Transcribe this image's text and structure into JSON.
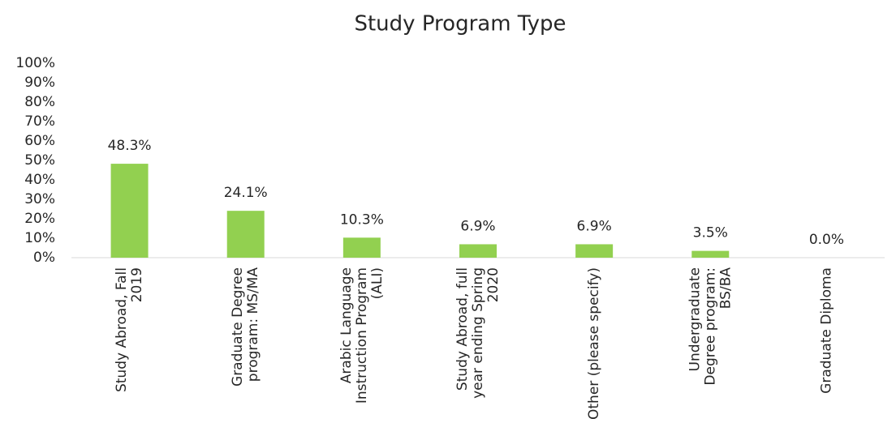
{
  "chart_data": {
    "type": "bar",
    "title": "Study Program Type",
    "categories": [
      "Study Abroad, Fall\n2019",
      "Graduate Degree\nprogram: MS/MA",
      "Arabic Language\nInstruction Program\n(ALI)",
      "Study Abroad, full\nyear ending Spring\n2020",
      "Other (please specify)",
      "Undergraduate\nDegree program:\nBS/BA",
      "Graduate Diploma"
    ],
    "values": [
      48.3,
      24.1,
      10.3,
      6.9,
      6.9,
      3.5,
      0.0
    ],
    "value_labels": [
      "48.3%",
      "24.1%",
      "10.3%",
      "6.9%",
      "6.9%",
      "3.5%",
      "0.0%"
    ],
    "color": "#92d050",
    "ylim": [
      0,
      100
    ],
    "yticks": [
      {
        "value": 0,
        "label": "0%"
      },
      {
        "value": 10,
        "label": "10%"
      },
      {
        "value": 20,
        "label": "20%"
      },
      {
        "value": 30,
        "label": "30%"
      },
      {
        "value": 40,
        "label": "40%"
      },
      {
        "value": 50,
        "label": "50%"
      },
      {
        "value": 60,
        "label": "60%"
      },
      {
        "value": 70,
        "label": "70%"
      },
      {
        "value": 80,
        "label": "80%"
      },
      {
        "value": 90,
        "label": "90%"
      },
      {
        "value": 100,
        "label": "100%"
      }
    ],
    "grid": false
  }
}
